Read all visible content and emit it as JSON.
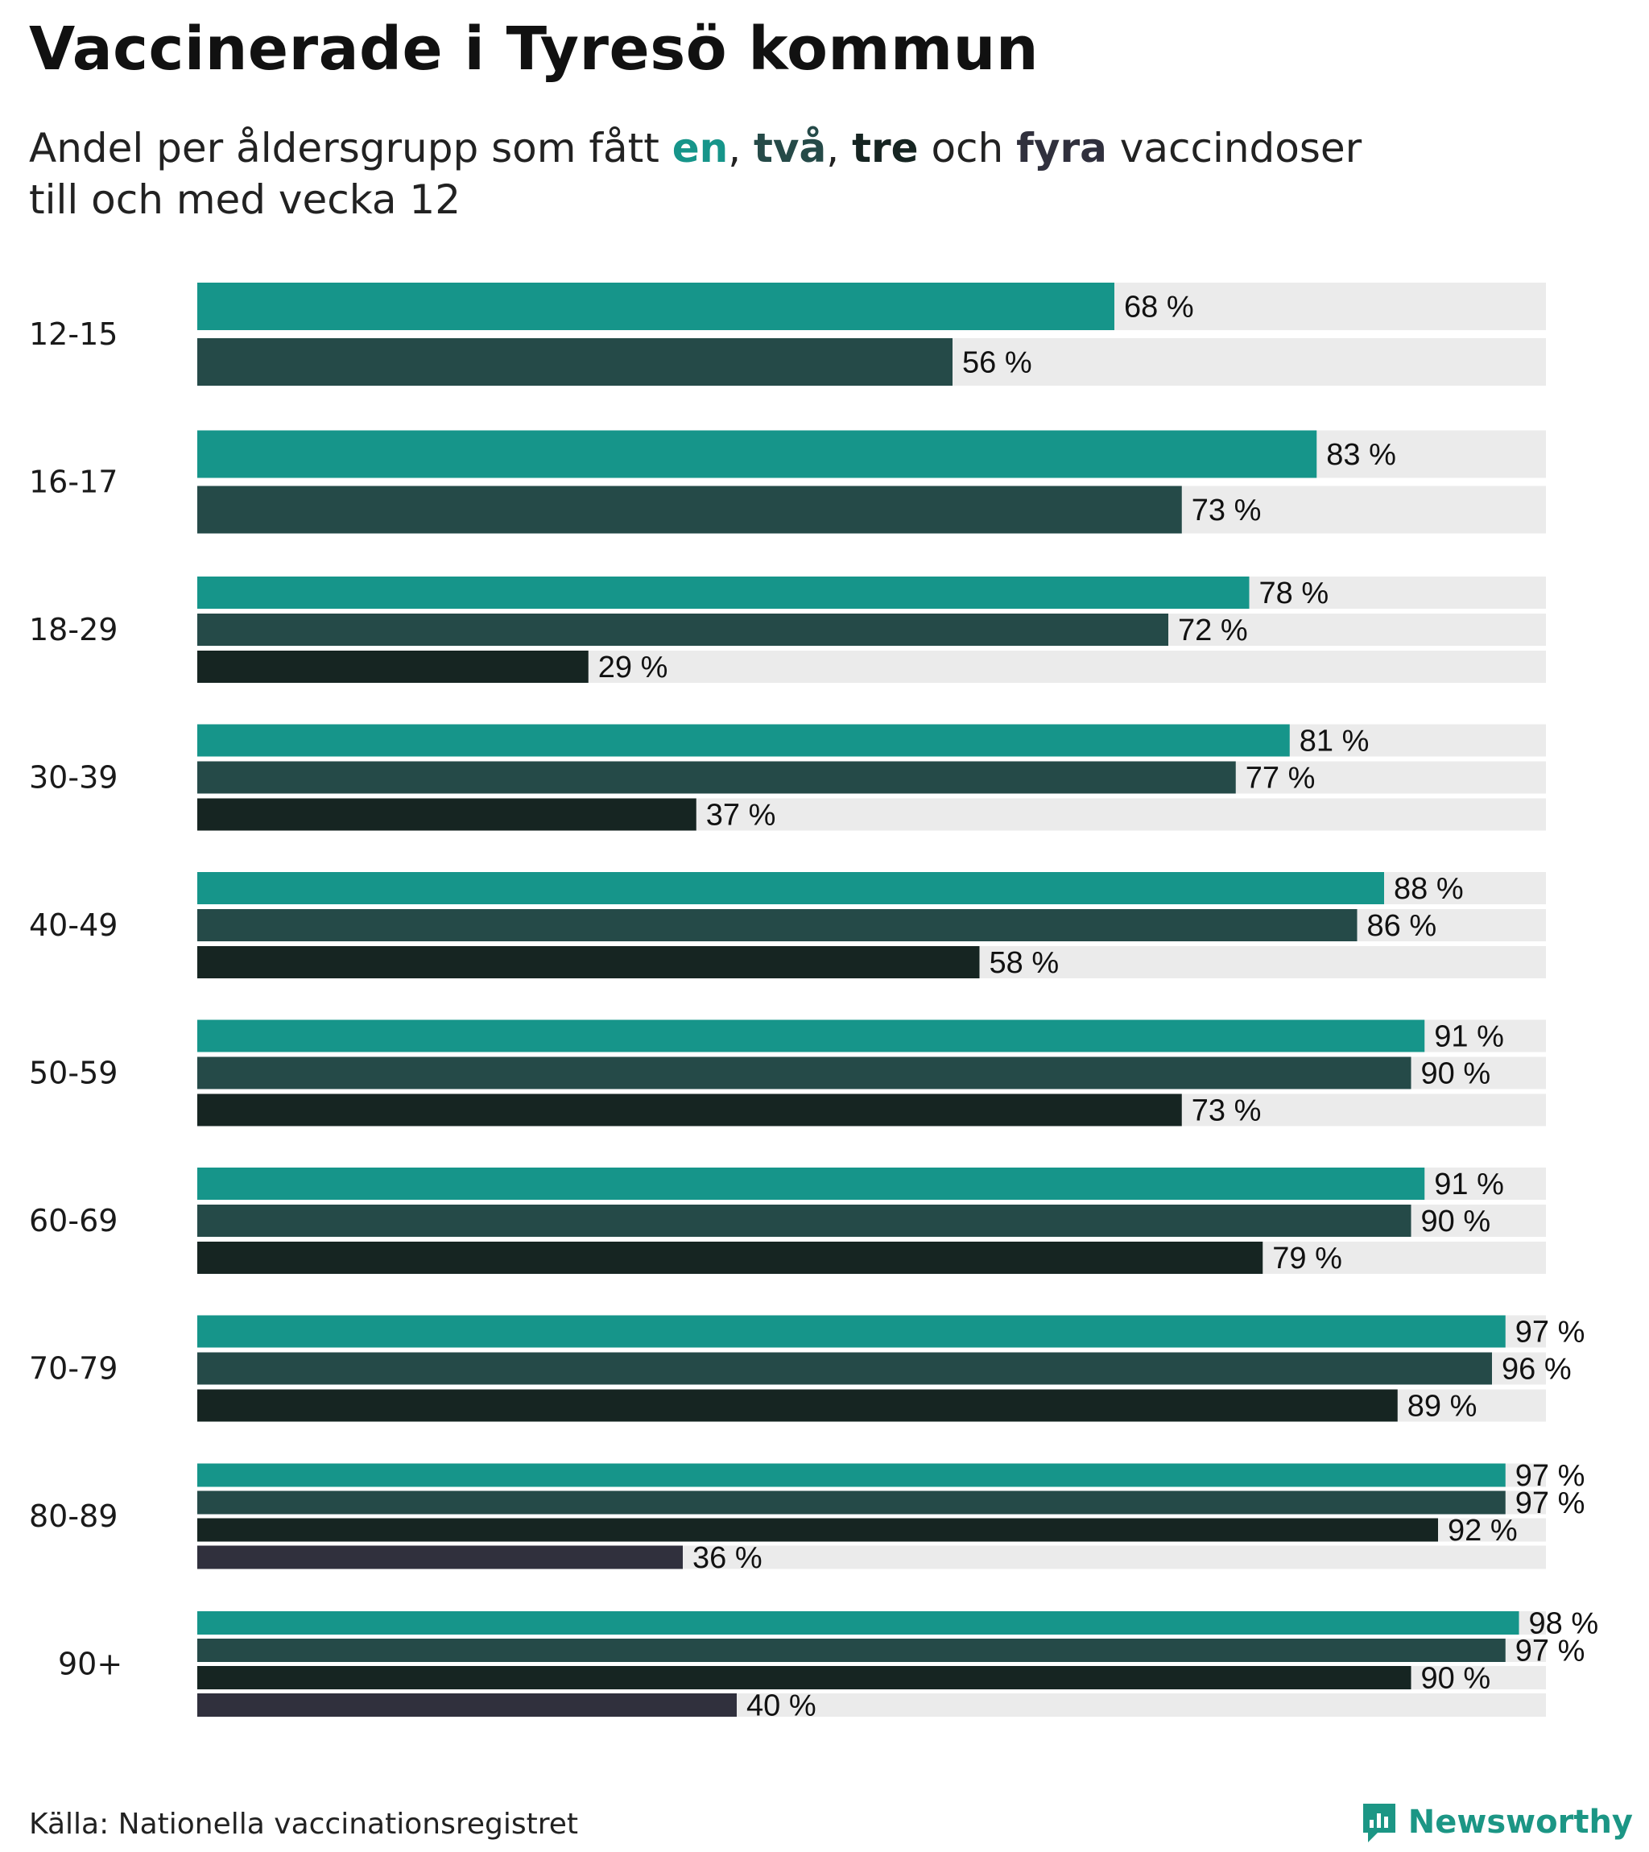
{
  "header": {
    "title": "Vaccinerade i Tyresö kommun",
    "subtitle_parts": {
      "prefix": "Andel per åldersgrupp som fått ",
      "en": "en",
      "comma1": ", ",
      "tva": "två",
      "comma2": ", ",
      "tre": "tre",
      "och": " och ",
      "fyra": "fyra",
      "suffix": " vaccindoser",
      "line2": "till och med vecka 12"
    }
  },
  "footer": {
    "source": "Källa: Nationella vaccinationsregistret",
    "brand": "Newsworthy"
  },
  "colors": {
    "dose1": "#16958a",
    "dose2": "#254a48",
    "dose3": "#162522",
    "dose4": "#30303d",
    "track": "#ebebeb",
    "brand": "#1c9685"
  },
  "chart_data": {
    "type": "bar",
    "orientation": "horizontal",
    "title": "Vaccinerade i Tyresö kommun",
    "xlim": [
      0,
      100
    ],
    "unit": "%",
    "value_suffix": " %",
    "grid": false,
    "series": [
      {
        "name": "en",
        "color_key": "dose1"
      },
      {
        "name": "två",
        "color_key": "dose2"
      },
      {
        "name": "tre",
        "color_key": "dose3"
      },
      {
        "name": "fyra",
        "color_key": "dose4"
      }
    ],
    "categories": [
      "12-15",
      "16-17",
      "18-29",
      "30-39",
      "40-49",
      "50-59",
      "60-69",
      "70-79",
      "80-89",
      "90+"
    ],
    "groups": [
      {
        "category": "12-15",
        "values": [
          68,
          56
        ]
      },
      {
        "category": "16-17",
        "values": [
          83,
          73
        ]
      },
      {
        "category": "18-29",
        "values": [
          78,
          72,
          29
        ]
      },
      {
        "category": "30-39",
        "values": [
          81,
          77,
          37
        ]
      },
      {
        "category": "40-49",
        "values": [
          88,
          86,
          58
        ]
      },
      {
        "category": "50-59",
        "values": [
          91,
          90,
          73
        ]
      },
      {
        "category": "60-69",
        "values": [
          91,
          90,
          79
        ]
      },
      {
        "category": "70-79",
        "values": [
          97,
          96,
          89
        ]
      },
      {
        "category": "80-89",
        "values": [
          97,
          97,
          92,
          36
        ]
      },
      {
        "category": "90+",
        "values": [
          98,
          97,
          90,
          40
        ]
      }
    ]
  }
}
